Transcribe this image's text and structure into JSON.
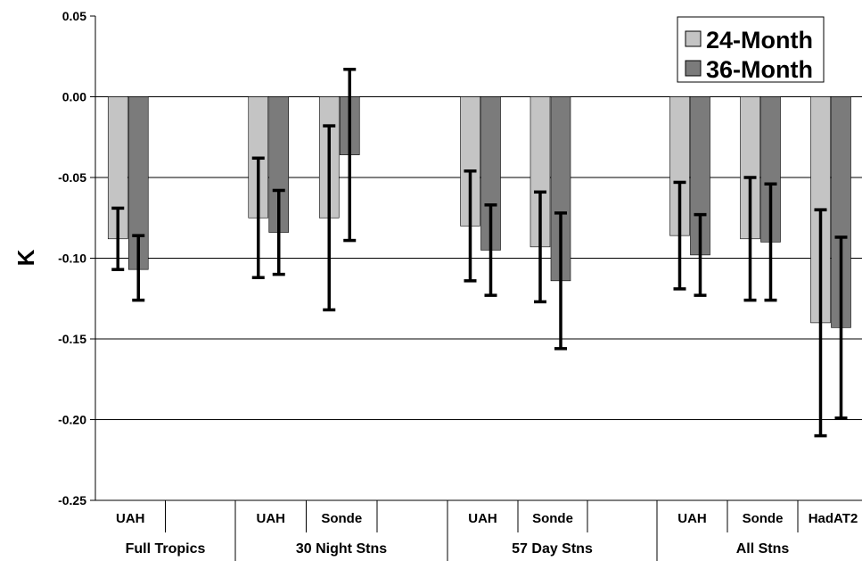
{
  "chart_data": {
    "type": "bar",
    "ylabel": "K",
    "ylim": [
      -0.25,
      0.05
    ],
    "yticks": [
      "0.05",
      "0.00",
      "-0.05",
      "-0.10",
      "-0.15",
      "-0.20",
      "-0.25"
    ],
    "grid": true,
    "legend_position": "top-right",
    "series_colors": [
      "#c4c4c4",
      "#7b7b7b"
    ],
    "groups": [
      {
        "label": "Full Tropics",
        "subs": [
          "UAH",
          ""
        ]
      },
      {
        "label": "30 Night Stns",
        "subs": [
          "UAH",
          "Sonde",
          ""
        ]
      },
      {
        "label": "57 Day Stns",
        "subs": [
          "UAH",
          "Sonde",
          ""
        ]
      },
      {
        "label": "All Stns",
        "subs": [
          "UAH",
          "Sonde",
          "HadAT2"
        ]
      }
    ],
    "series": [
      {
        "name": "24-Month",
        "values": [
          -0.088,
          -0.075,
          -0.075,
          -0.08,
          -0.093,
          -0.086,
          -0.088,
          -0.14
        ],
        "err_low": [
          -0.107,
          -0.112,
          -0.132,
          -0.114,
          -0.127,
          -0.119,
          -0.126,
          -0.21
        ],
        "err_high": [
          -0.069,
          -0.038,
          -0.018,
          -0.046,
          -0.059,
          -0.053,
          -0.05,
          -0.07
        ]
      },
      {
        "name": "36-Month",
        "values": [
          -0.107,
          -0.084,
          -0.036,
          -0.095,
          -0.114,
          -0.098,
          -0.09,
          -0.143
        ],
        "err_low": [
          -0.126,
          -0.11,
          -0.089,
          -0.123,
          -0.156,
          -0.123,
          -0.126,
          -0.199
        ],
        "err_high": [
          -0.086,
          -0.058,
          0.017,
          -0.067,
          -0.072,
          -0.073,
          -0.054,
          -0.087
        ]
      }
    ]
  }
}
